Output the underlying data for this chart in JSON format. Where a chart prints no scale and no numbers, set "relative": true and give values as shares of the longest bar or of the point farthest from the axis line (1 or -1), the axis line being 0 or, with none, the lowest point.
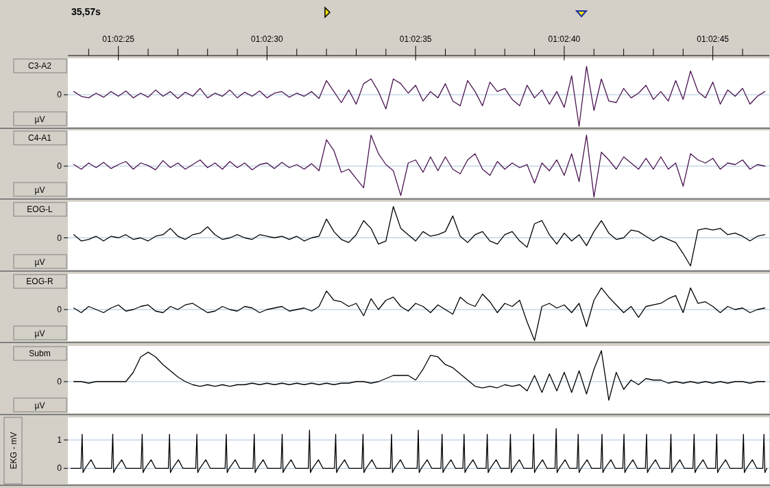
{
  "chart_data": [
    {
      "type": "line",
      "title": "35,57s",
      "ylabel": "C3-A2",
      "annotations": [
        "µV"
      ],
      "relative": true,
      "tick_labels": "x",
      "xlim": [
        3743.3,
        3766.9
      ],
      "xticks": [
        {
          "value": 3745,
          "label": "01:02:25"
        },
        {
          "value": 3750,
          "label": "01:02:30"
        },
        {
          "value": 3755,
          "label": "01:02:35"
        },
        {
          "value": 3760,
          "label": "01:02:40"
        },
        {
          "value": 3765,
          "label": "01:02:45"
        }
      ],
      "ref_lines": [
        {
          "axis": "y",
          "value": 0,
          "label": "0",
          "color": "#a8c4dc"
        }
      ],
      "x": [
        3743.5,
        3743.75,
        3744,
        3744.25,
        3744.5,
        3744.75,
        3745,
        3745.25,
        3745.5,
        3745.75,
        3746,
        3746.25,
        3746.5,
        3746.75,
        3747,
        3747.25,
        3747.5,
        3747.75,
        3748,
        3748.25,
        3748.5,
        3748.75,
        3749,
        3749.25,
        3749.5,
        3749.75,
        3750,
        3750.25,
        3750.5,
        3750.75,
        3751,
        3751.25,
        3751.5,
        3751.75,
        3752,
        3752.25,
        3752.5,
        3752.75,
        3753,
        3753.25,
        3753.5,
        3753.75,
        3754,
        3754.25,
        3754.5,
        3754.75,
        3755,
        3755.25,
        3755.5,
        3755.75,
        3756,
        3756.25,
        3756.5,
        3756.75,
        3757,
        3757.25,
        3757.5,
        3757.75,
        3758,
        3758.25,
        3758.5,
        3758.75,
        3759,
        3759.25,
        3759.5,
        3759.75,
        3760,
        3760.25,
        3760.5,
        3760.75,
        3761,
        3761.25,
        3761.5,
        3761.75,
        3762,
        3762.25,
        3762.5,
        3762.75,
        3763,
        3763.25,
        3763.5,
        3763.75,
        3764,
        3764.25,
        3764.5,
        3764.75,
        3765,
        3765.25,
        3765.5,
        3765.75,
        3766,
        3766.25,
        3766.5,
        3766.75
      ],
      "series": [
        {
          "color": "#4a1450",
          "values": [
            0.1,
            -0.05,
            -0.1,
            0.05,
            -0.08,
            0.1,
            -0.05,
            0.12,
            -0.1,
            0.05,
            -0.08,
            0.15,
            -0.05,
            0.1,
            -0.12,
            0.08,
            -0.05,
            0.2,
            -0.1,
            0.05,
            -0.05,
            0.15,
            -0.1,
            0.08,
            -0.05,
            0.12,
            -0.1,
            0.05,
            0.1,
            -0.08,
            0.05,
            -0.05,
            0.1,
            -0.12,
            0.45,
            0.1,
            -0.25,
            0.15,
            -0.3,
            0.35,
            0.5,
            0.1,
            -0.45,
            0.5,
            0.35,
            0.05,
            0.3,
            -0.2,
            0.1,
            -0.1,
            0.35,
            -0.2,
            -0.35,
            0.45,
            0.1,
            -0.35,
            0.4,
            0.1,
            0.2,
            -0.15,
            -0.35,
            0.3,
            -0.1,
            0.15,
            -0.3,
            0.1,
            -0.4,
            0.6,
            -1,
            0.9,
            -0.5,
            0.5,
            -0.2,
            -0.25,
            0.2,
            -0.1,
            0.05,
            0.3,
            -0.15,
            0.1,
            -0.2,
            0.45,
            -0.15,
            0.75,
            0.1,
            -0.1,
            0.4,
            -0.3,
            0.15,
            -0.05,
            0.2,
            -0.3,
            -0.05,
            0.1
          ]
        }
      ]
    },
    {
      "type": "line",
      "ylabel": "C4-A1",
      "annotations": [
        "µV"
      ],
      "relative": true,
      "tick_labels": false,
      "xlim": [
        3743.3,
        3766.9
      ],
      "ref_lines": [
        {
          "axis": "y",
          "value": 0,
          "label": "0",
          "color": "#a8c4dc"
        }
      ],
      "x": [
        3743.5,
        3743.75,
        3744,
        3744.25,
        3744.5,
        3744.75,
        3745,
        3745.25,
        3745.5,
        3745.75,
        3746,
        3746.25,
        3746.5,
        3746.75,
        3747,
        3747.25,
        3747.5,
        3747.75,
        3748,
        3748.25,
        3748.5,
        3748.75,
        3749,
        3749.25,
        3749.5,
        3749.75,
        3750,
        3750.25,
        3750.5,
        3750.75,
        3751,
        3751.25,
        3751.5,
        3751.75,
        3752,
        3752.25,
        3752.5,
        3752.75,
        3753,
        3753.25,
        3753.5,
        3753.75,
        3754,
        3754.25,
        3754.5,
        3754.75,
        3755,
        3755.25,
        3755.5,
        3755.75,
        3756,
        3756.25,
        3756.5,
        3756.75,
        3757,
        3757.25,
        3757.5,
        3757.75,
        3758,
        3758.25,
        3758.5,
        3758.75,
        3759,
        3759.25,
        3759.5,
        3759.75,
        3760,
        3760.25,
        3760.5,
        3760.75,
        3761,
        3761.25,
        3761.5,
        3761.75,
        3762,
        3762.25,
        3762.5,
        3762.75,
        3763,
        3763.25,
        3763.5,
        3763.75,
        3764,
        3764.25,
        3764.5,
        3764.75,
        3765,
        3765.25,
        3765.5,
        3765.75,
        3766,
        3766.25,
        3766.5,
        3766.75
      ],
      "series": [
        {
          "color": "#4a1450",
          "values": [
            0.05,
            -0.1,
            0.1,
            -0.05,
            0.12,
            -0.08,
            0.05,
            0.15,
            -0.1,
            0.1,
            0.02,
            -0.12,
            0.18,
            -0.05,
            0.1,
            -0.1,
            0.05,
            0.2,
            -0.05,
            0.1,
            -0.1,
            0.15,
            -0.05,
            0.1,
            -0.12,
            0.05,
            0.1,
            -0.08,
            0.12,
            -0.05,
            0.05,
            -0.1,
            0.08,
            -0.15,
            0.85,
            0.5,
            -0.2,
            -0.1,
            -0.4,
            -0.7,
            1,
            0.4,
            0.05,
            -0.15,
            -0.95,
            0.1,
            0.2,
            -0.2,
            0.3,
            -0.15,
            0.3,
            -0.1,
            -0.25,
            0.2,
            0.4,
            -0.1,
            -0.3,
            0.15,
            -0.1,
            0.1,
            -0.05,
            0.05,
            -0.55,
            0.1,
            -0.15,
            0.2,
            -0.3,
            0.4,
            -0.5,
            1,
            -1,
            0.45,
            0.2,
            -0.1,
            0.3,
            0.1,
            -0.1,
            0.25,
            -0.1,
            0.3,
            -0.1,
            0.1,
            -0.65,
            0.4,
            0.2,
            0.1,
            0.25,
            -0.1,
            0.1,
            0.05,
            0.2,
            -0.1,
            0.05,
            0
          ]
        }
      ]
    },
    {
      "type": "line",
      "ylabel": "EOG-L",
      "annotations": [
        "µV"
      ],
      "relative": true,
      "tick_labels": false,
      "xlim": [
        3743.3,
        3766.9
      ],
      "ref_lines": [
        {
          "axis": "y",
          "value": 0,
          "label": "0",
          "color": "#a8c4dc"
        }
      ],
      "x": [
        3743.5,
        3743.75,
        3744,
        3744.25,
        3744.5,
        3744.75,
        3745,
        3745.25,
        3745.5,
        3745.75,
        3746,
        3746.25,
        3746.5,
        3746.75,
        3747,
        3747.25,
        3747.5,
        3747.75,
        3748,
        3748.25,
        3748.5,
        3748.75,
        3749,
        3749.25,
        3749.5,
        3749.75,
        3750,
        3750.25,
        3750.5,
        3750.75,
        3751,
        3751.25,
        3751.5,
        3751.75,
        3752,
        3752.25,
        3752.5,
        3752.75,
        3753,
        3753.25,
        3753.5,
        3753.75,
        3754,
        3754.25,
        3754.5,
        3754.75,
        3755,
        3755.25,
        3755.5,
        3755.75,
        3756,
        3756.25,
        3756.5,
        3756.75,
        3757,
        3757.25,
        3757.5,
        3757.75,
        3758,
        3758.25,
        3758.5,
        3758.75,
        3759,
        3759.25,
        3759.5,
        3759.75,
        3760,
        3760.25,
        3760.5,
        3760.75,
        3761,
        3761.25,
        3761.5,
        3761.75,
        3762,
        3762.25,
        3762.5,
        3762.75,
        3763,
        3763.25,
        3763.5,
        3763.75,
        3764,
        3764.25,
        3764.5,
        3764.75,
        3765,
        3765.25,
        3765.5,
        3765.75,
        3766,
        3766.25,
        3766.5,
        3766.75
      ],
      "series": [
        {
          "color": "#000000",
          "values": [
            0.1,
            -0.1,
            -0.05,
            0.05,
            -0.1,
            0.05,
            0,
            0.1,
            -0.05,
            0,
            -0.1,
            0.05,
            0.1,
            0.3,
            0.05,
            -0.05,
            0.1,
            0.15,
            0.35,
            0.1,
            -0.05,
            0,
            0.1,
            0,
            -0.05,
            0.1,
            0.05,
            0,
            0.05,
            -0.05,
            0.05,
            -0.1,
            0,
            0.05,
            0.6,
            0.2,
            -0.05,
            -0.15,
            0.1,
            0.55,
            0.3,
            -0.2,
            -0.1,
            1,
            0.3,
            0.1,
            -0.1,
            0.2,
            0.05,
            0.1,
            0.2,
            0.7,
            0.05,
            -0.15,
            0.1,
            0.2,
            -0.1,
            -0.2,
            0.1,
            0.2,
            -0.1,
            -0.3,
            0.45,
            0.55,
            0.1,
            -0.2,
            0.15,
            -0.1,
            0.1,
            -0.25,
            0.2,
            0.55,
            0.15,
            -0.05,
            0,
            0.25,
            0.2,
            0.05,
            -0.1,
            0.05,
            -0.05,
            -0.15,
            -0.5,
            -0.9,
            0.25,
            0.3,
            0.25,
            0.3,
            0.1,
            0.15,
            0.05,
            -0.1,
            0.05,
            0.1
          ]
        }
      ]
    },
    {
      "type": "line",
      "ylabel": "EOG-R",
      "annotations": [
        "µV"
      ],
      "relative": true,
      "tick_labels": false,
      "xlim": [
        3743.3,
        3766.9
      ],
      "ref_lines": [
        {
          "axis": "y",
          "value": 0,
          "label": "0",
          "color": "#a8c4dc"
        }
      ],
      "x": [
        3743.5,
        3743.75,
        3744,
        3744.25,
        3744.5,
        3744.75,
        3745,
        3745.25,
        3745.5,
        3745.75,
        3746,
        3746.25,
        3746.5,
        3746.75,
        3747,
        3747.25,
        3747.5,
        3747.75,
        3748,
        3748.25,
        3748.5,
        3748.75,
        3749,
        3749.25,
        3749.5,
        3749.75,
        3750,
        3750.25,
        3750.5,
        3750.75,
        3751,
        3751.25,
        3751.5,
        3751.75,
        3752,
        3752.25,
        3752.5,
        3752.75,
        3753,
        3753.25,
        3753.5,
        3753.75,
        3754,
        3754.25,
        3754.5,
        3754.75,
        3755,
        3755.25,
        3755.5,
        3755.75,
        3756,
        3756.25,
        3756.5,
        3756.75,
        3757,
        3757.25,
        3757.5,
        3757.75,
        3758,
        3758.25,
        3758.5,
        3758.75,
        3759,
        3759.25,
        3759.5,
        3759.75,
        3760,
        3760.25,
        3760.5,
        3760.75,
        3761,
        3761.25,
        3761.5,
        3761.75,
        3762,
        3762.25,
        3762.5,
        3762.75,
        3763,
        3763.25,
        3763.5,
        3763.75,
        3764,
        3764.25,
        3764.5,
        3764.75,
        3765,
        3765.25,
        3765.5,
        3765.75,
        3766,
        3766.25,
        3766.5,
        3766.75
      ],
      "series": [
        {
          "color": "#000000",
          "values": [
            0.05,
            -0.1,
            0.1,
            0,
            -0.1,
            0.05,
            0.15,
            -0.05,
            0,
            0.1,
            0.15,
            -0.05,
            -0.1,
            0.1,
            0,
            0.15,
            0.2,
            0.05,
            -0.1,
            -0.05,
            0.1,
            0,
            -0.05,
            0.1,
            0.05,
            -0.1,
            0,
            0.05,
            0.1,
            -0.05,
            0,
            0.05,
            -0.05,
            0.1,
            0.6,
            0.3,
            0.25,
            0.1,
            0.2,
            -0.2,
            0.35,
            0,
            0.3,
            0.4,
            0.1,
            -0.05,
            0.2,
            0.1,
            -0.1,
            0.15,
            0,
            -0.15,
            0.4,
            0.2,
            0.1,
            0.5,
            0.25,
            -0.1,
            0.2,
            0.1,
            0.3,
            -0.4,
            -1,
            0.1,
            0.2,
            0.05,
            0.15,
            -0.1,
            0.2,
            -0.55,
            0.3,
            0.7,
            0.4,
            0.15,
            -0.1,
            0.1,
            -0.25,
            0.1,
            0.15,
            0.2,
            0.35,
            0.45,
            -0.1,
            0.7,
            0.2,
            0.25,
            0.1,
            -0.1,
            0.1,
            0,
            0.05,
            -0.1,
            0,
            0.05
          ]
        }
      ]
    },
    {
      "type": "line",
      "ylabel": "Subm",
      "annotations": [
        "µV"
      ],
      "relative": true,
      "tick_labels": false,
      "xlim": [
        3743.3,
        3766.9
      ],
      "ref_lines": [
        {
          "axis": "y",
          "value": 0,
          "label": "0",
          "color": "#a8c4dc"
        }
      ],
      "x": [
        3743.5,
        3743.75,
        3744,
        3744.25,
        3744.5,
        3744.75,
        3745,
        3745.25,
        3745.5,
        3745.75,
        3746,
        3746.25,
        3746.5,
        3746.75,
        3747,
        3747.25,
        3747.5,
        3747.75,
        3748,
        3748.25,
        3748.5,
        3748.75,
        3749,
        3749.25,
        3749.5,
        3749.75,
        3750,
        3750.25,
        3750.5,
        3750.75,
        3751,
        3751.25,
        3751.5,
        3751.75,
        3752,
        3752.25,
        3752.5,
        3752.75,
        3753,
        3753.25,
        3753.5,
        3753.75,
        3754,
        3754.25,
        3754.5,
        3754.75,
        3755,
        3755.25,
        3755.5,
        3755.75,
        3756,
        3756.25,
        3756.5,
        3756.75,
        3757,
        3757.25,
        3757.5,
        3757.75,
        3758,
        3758.25,
        3758.5,
        3758.75,
        3759,
        3759.25,
        3759.5,
        3759.75,
        3760,
        3760.25,
        3760.5,
        3760.75,
        3761,
        3761.25,
        3761.5,
        3761.75,
        3762,
        3762.25,
        3762.5,
        3762.75,
        3763,
        3763.25,
        3763.5,
        3763.75,
        3764,
        3764.25,
        3764.5,
        3764.75,
        3765,
        3765.25,
        3765.5,
        3765.75,
        3766,
        3766.25,
        3766.5,
        3766.75
      ],
      "series": [
        {
          "color": "#000000",
          "values": [
            0,
            0,
            -0.05,
            0,
            0,
            0,
            0,
            0,
            0.3,
            0.8,
            0.95,
            0.8,
            0.55,
            0.35,
            0.15,
            0,
            -0.1,
            -0.15,
            -0.1,
            -0.15,
            -0.1,
            -0.15,
            -0.1,
            -0.1,
            -0.05,
            -0.1,
            -0.05,
            -0.1,
            -0.05,
            -0.1,
            -0.05,
            -0.1,
            -0.05,
            -0.1,
            -0.05,
            -0.1,
            -0.05,
            -0.05,
            0,
            0,
            -0.05,
            0,
            0.1,
            0.2,
            0.2,
            0.2,
            0.05,
            0.4,
            0.85,
            0.8,
            0.55,
            0.45,
            0.25,
            0.05,
            -0.15,
            -0.2,
            -0.15,
            -0.2,
            -0.1,
            -0.15,
            -0.1,
            -0.3,
            0.2,
            -0.35,
            0.25,
            -0.3,
            0.3,
            -0.35,
            0.35,
            -0.4,
            0.4,
            1,
            -0.6,
            0.3,
            -0.25,
            0.05,
            -0.1,
            0.1,
            0.05,
            0.05,
            -0.05,
            0,
            -0.05,
            0,
            -0.05,
            0,
            -0.05,
            0,
            -0.05,
            0,
            0,
            -0.05,
            0,
            0
          ]
        }
      ]
    },
    {
      "type": "line",
      "ylabel": "EKG - mV",
      "tick_labels": "y",
      "grid": "y",
      "xlim": [
        3743.3,
        3766.9
      ],
      "ylim": [
        -0.55,
        1.8
      ],
      "yticks": [
        0,
        1
      ],
      "x": [
        3743.4,
        3743.74,
        3743.78,
        3743.81,
        3743.88,
        3744.08,
        3744.23,
        3744.77,
        3744.81,
        3744.84,
        3744.91,
        3745.11,
        3745.26,
        3745.76,
        3745.8,
        3745.83,
        3745.9,
        3746.1,
        3746.25,
        3746.68,
        3746.72,
        3746.75,
        3746.82,
        3747.02,
        3747.17,
        3747.6,
        3747.64,
        3747.67,
        3747.74,
        3747.94,
        3748.09,
        3748.59,
        3748.63,
        3748.66,
        3748.73,
        3748.93,
        3749.08,
        3749.53,
        3749.57,
        3749.6,
        3749.67,
        3749.87,
        3750.02,
        3750.47,
        3750.51,
        3750.54,
        3750.61,
        3750.81,
        3750.96,
        3751.39,
        3751.43,
        3751.46,
        3751.53,
        3751.73,
        3751.88,
        3752.27,
        3752.31,
        3752.34,
        3752.41,
        3752.61,
        3752.76,
        3753.19,
        3753.23,
        3753.26,
        3753.33,
        3753.53,
        3753.68,
        3754.15,
        3754.19,
        3754.22,
        3754.29,
        3754.49,
        3754.64,
        3755.05,
        3755.09,
        3755.12,
        3755.19,
        3755.39,
        3755.54,
        3755.85,
        3755.89,
        3755.92,
        3755.99,
        3756.19,
        3756.34,
        3756.59,
        3756.63,
        3756.66,
        3756.73,
        3756.93,
        3757.08,
        3757.37,
        3757.41,
        3757.44,
        3757.51,
        3757.71,
        3757.86,
        3758.15,
        3758.19,
        3758.22,
        3758.29,
        3758.49,
        3758.64,
        3758.93,
        3758.97,
        3759,
        3759.07,
        3759.27,
        3759.42,
        3759.69,
        3759.73,
        3759.76,
        3759.83,
        3760.03,
        3760.18,
        3760.43,
        3760.47,
        3760.5,
        3760.57,
        3760.77,
        3760.92,
        3761.23,
        3761.27,
        3761.3,
        3761.37,
        3761.57,
        3761.72,
        3761.97,
        3762.01,
        3762.04,
        3762.11,
        3762.31,
        3762.46,
        3762.73,
        3762.77,
        3762.8,
        3762.87,
        3763.07,
        3763.22,
        3763.55,
        3763.59,
        3763.62,
        3763.69,
        3763.89,
        3764.04,
        3764.33,
        3764.37,
        3764.4,
        3764.47,
        3764.67,
        3764.82,
        3765.09,
        3765.13,
        3765.16,
        3765.23,
        3765.43,
        3765.58,
        3765.99,
        3766.03,
        3766.06,
        3766.13,
        3766.33,
        3766.48,
        3766.68,
        3766.72,
        3766.75,
        3766.82
      ],
      "series": [
        {
          "color": "#000000",
          "values": [
            0,
            0,
            1.2,
            -0.15,
            0,
            0.3,
            0,
            0,
            1.2,
            -0.15,
            0,
            0.3,
            0,
            0,
            1.2,
            -0.15,
            0,
            0.3,
            0,
            0,
            1.2,
            -0.15,
            0,
            0.3,
            0,
            0,
            1.2,
            -0.15,
            0,
            0.3,
            0,
            0,
            1.2,
            -0.15,
            0,
            0.3,
            0,
            0,
            1.2,
            -0.15,
            0,
            0.3,
            0,
            0,
            1.2,
            -0.15,
            0,
            0.3,
            0,
            0,
            1.35,
            -0.15,
            0,
            0.3,
            0,
            0,
            1.2,
            -0.15,
            0,
            0.3,
            0,
            0,
            1.2,
            -0.15,
            0,
            0.3,
            0,
            0,
            1.2,
            -0.15,
            0,
            0.3,
            0,
            0,
            1.35,
            -0.15,
            0,
            0.3,
            0,
            0,
            1.2,
            -0.15,
            0,
            0.3,
            0,
            0,
            1.2,
            -0.15,
            0,
            0.3,
            0,
            0,
            1.2,
            -0.15,
            0,
            0.3,
            0,
            0,
            1.2,
            -0.15,
            0,
            0.3,
            0,
            0,
            1.2,
            -0.15,
            0,
            0.3,
            0,
            0,
            1.4,
            -0.15,
            0,
            0.3,
            0,
            0,
            1.2,
            -0.15,
            0,
            0.3,
            0,
            0,
            1.2,
            -0.15,
            0,
            0.3,
            0,
            0,
            1.2,
            -0.15,
            0,
            0.3,
            0,
            0,
            1.2,
            -0.15,
            0,
            0.3,
            0,
            0,
            1.2,
            -0.15,
            0,
            0.3,
            0,
            0,
            1.2,
            -0.15,
            0,
            0.3,
            0,
            0,
            1.2,
            -0.15,
            0,
            0.3,
            0,
            0,
            1.2,
            -0.15,
            0,
            0.3,
            0,
            0,
            1.2,
            -0.15,
            0
          ]
        }
      ]
    }
  ]
}
